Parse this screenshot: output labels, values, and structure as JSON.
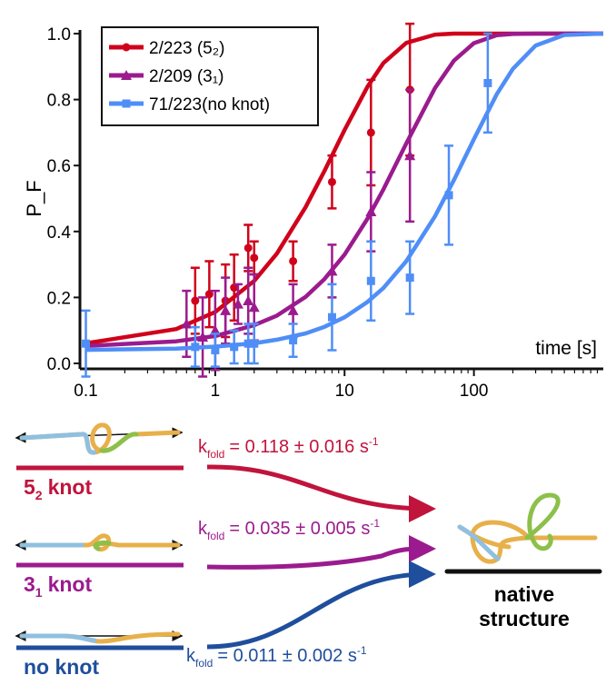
{
  "chart_data": {
    "type": "line",
    "y_label": "P_F",
    "x_label": "time [s]",
    "log_x": true,
    "legend": "upper left",
    "xlim": [
      0.09,
      1000
    ],
    "ylim": [
      0,
      1
    ],
    "xticks": [
      0.1,
      1,
      10,
      100
    ],
    "yticks": [
      {
        "value": 0,
        "label": "0.0"
      },
      0.2,
      0.4,
      0.6,
      0.8,
      {
        "value": 1,
        "label": "1.0"
      }
    ],
    "series": [
      {
        "name": "2/223 (5₂)",
        "color": "#d0021b",
        "marker": "circle",
        "x": [
          0.7,
          0.9,
          1.2,
          1.4,
          1.8,
          2,
          4,
          8,
          16,
          32
        ],
        "values": [
          0.19,
          0.21,
          0.19,
          0.23,
          0.35,
          0.32,
          0.31,
          0.55,
          0.7,
          0.83
        ],
        "errors": [
          0.1,
          0.1,
          0.11,
          0.1,
          0.07,
          0.05,
          0.06,
          0.08,
          0.16,
          0.2
        ],
        "fit": {
          "x": [
            0.1,
            0.5,
            1,
            2,
            3,
            5,
            7,
            10,
            15,
            20,
            30,
            50,
            70,
            100,
            150,
            200,
            300,
            500,
            1000
          ],
          "values": [
            0.061,
            0.104,
            0.156,
            0.25,
            0.333,
            0.474,
            0.584,
            0.708,
            0.838,
            0.911,
            0.972,
            0.997,
            1,
            1,
            1,
            1,
            1,
            1,
            1
          ]
        }
      },
      {
        "name": "2/209 (3₁)",
        "color": "#9b1b8e",
        "marker": "triangle",
        "x": [
          0.6,
          0.8,
          1,
          1.2,
          1.5,
          1.8,
          2,
          4,
          8,
          16,
          32
        ],
        "values": [
          0.12,
          0.08,
          0.1,
          0.16,
          0.18,
          0.19,
          0.17,
          0.16,
          0.28,
          0.46,
          0.63
        ],
        "errors": [
          0.1,
          0.12,
          0.12,
          0.1,
          0.06,
          0.1,
          0.1,
          0.08,
          0.08,
          0.12,
          0.2
        ],
        "fit": {
          "x": [
            0.1,
            0.5,
            1,
            2,
            3,
            5,
            7,
            10,
            15,
            20,
            30,
            50,
            70,
            100,
            150,
            200,
            300,
            500,
            1000
          ],
          "values": [
            0.053,
            0.067,
            0.083,
            0.116,
            0.145,
            0.202,
            0.256,
            0.33,
            0.438,
            0.528,
            0.667,
            0.835,
            0.918,
            0.971,
            0.995,
            0.999,
            1,
            1,
            1
          ]
        }
      },
      {
        "name": "71/223(no knot)",
        "color": "#4f8ef7",
        "marker": "square",
        "x": [
          0.1,
          0.7,
          1,
          1.4,
          1.8,
          2,
          4,
          8,
          16,
          32,
          64,
          128
        ],
        "values": [
          0.06,
          0.05,
          0.04,
          0.05,
          0.06,
          0.06,
          0.07,
          0.14,
          0.25,
          0.26,
          0.51,
          0.85
        ],
        "errors": [
          0.1,
          0.06,
          0.05,
          0.05,
          0.06,
          0.06,
          0.05,
          0.1,
          0.12,
          0.11,
          0.15,
          0.15
        ],
        "fit": {
          "x": [
            0.1,
            0.5,
            1,
            2,
            3,
            5,
            7,
            10,
            15,
            20,
            30,
            50,
            70,
            100,
            150,
            200,
            300,
            500,
            1000
          ],
          "values": [
            0.041,
            0.045,
            0.051,
            0.061,
            0.072,
            0.091,
            0.111,
            0.14,
            0.186,
            0.229,
            0.31,
            0.446,
            0.556,
            0.68,
            0.816,
            0.893,
            0.964,
            0.996,
            1
          ]
        }
      }
    ]
  },
  "diagram": {
    "rows": [
      {
        "color": "#c0143c",
        "label": {
          "main": "5",
          "sub": "2",
          "rest": "knot"
        },
        "rate": {
          "k": "k",
          "sub": "fold",
          "text": "= 0.118 ± 0.016 s",
          "sup": "-1"
        }
      },
      {
        "color": "#9b1b8e",
        "label": {
          "main": "3",
          "sub": "1",
          "rest": "knot"
        },
        "rate": {
          "k": "k",
          "sub": "fold",
          "text": "= 0.035 ± 0.005 s",
          "sup": "-1"
        }
      },
      {
        "color": "#1f4e9c",
        "label": {
          "main": "no knot"
        },
        "rate": {
          "k": "k",
          "sub": "fold",
          "text": "= 0.011 ± 0.002 s",
          "sup": "-1"
        }
      }
    ],
    "target": [
      "native",
      "structure"
    ]
  }
}
